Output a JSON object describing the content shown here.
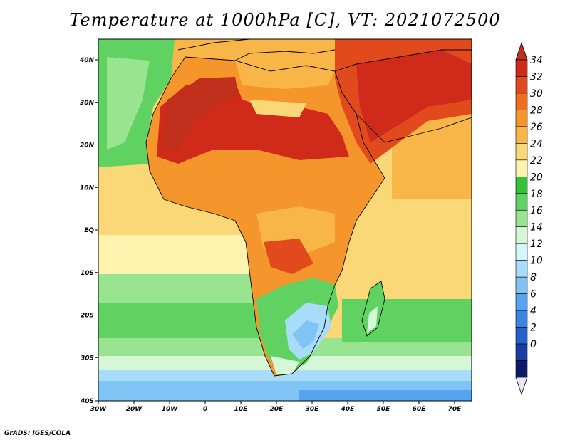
{
  "title": "Temperature at 1000hPa [C], VT: 2021072500",
  "credit": "GrADS: IGES/COLA",
  "map": {
    "lon_labels": [
      "30W",
      "20W",
      "10W",
      "0",
      "10E",
      "20E",
      "30E",
      "40E",
      "50E",
      "60E",
      "70E"
    ],
    "lat_labels": [
      "40N",
      "30N",
      "20N",
      "10N",
      "EQ",
      "10S",
      "20S",
      "30S",
      "40S"
    ]
  },
  "colorbar": {
    "labels": [
      "34",
      "32",
      "30",
      "28",
      "26",
      "24",
      "22",
      "20",
      "18",
      "16",
      "14",
      "12",
      "10",
      "8",
      "6",
      "4",
      "2",
      "0"
    ],
    "colors": [
      "#d02a1a",
      "#e04a1c",
      "#ee6f1e",
      "#f5962c",
      "#f8b548",
      "#fbd877",
      "#fbf3ae",
      "#36c13c",
      "#60d262",
      "#98e491",
      "#d6f8d9",
      "#d4f7fb",
      "#a9dcf8",
      "#80c3f5",
      "#56a4ef",
      "#3a84e2",
      "#2361cb",
      "#1b3da3",
      "#0d1a6a"
    ],
    "top_cap": "#c0301c",
    "bottom_cap": "#ece4fa"
  }
}
